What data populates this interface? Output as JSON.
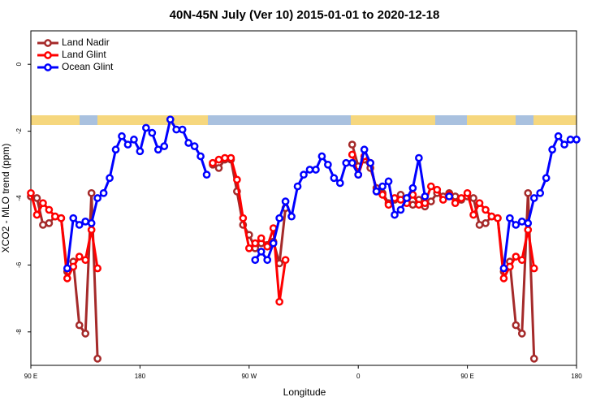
{
  "chart_data": {
    "type": "line",
    "title": "40N-45N July (Ver 10)   2015-01-01 to 2020-12-18",
    "x_label": "Longitude",
    "y_label": "XCO2 - MLO trend (ppm)",
    "x": [
      90,
      95,
      100,
      105,
      110,
      115,
      120,
      125,
      130,
      135,
      140,
      145,
      150,
      155,
      160,
      165,
      170,
      175,
      180,
      185,
      190,
      195,
      200,
      205,
      210,
      215,
      220,
      225,
      230,
      235,
      240,
      245,
      250,
      255,
      260,
      265,
      270,
      275,
      280,
      285,
      290,
      295,
      300,
      305,
      310,
      315,
      320,
      325,
      330,
      335,
      340,
      345,
      350,
      355,
      360,
      365,
      370,
      375,
      380,
      385,
      390,
      395,
      400,
      405,
      410,
      415,
      420,
      425,
      430,
      435,
      440,
      445,
      450,
      455,
      460,
      465,
      470,
      475,
      480,
      485,
      490,
      495,
      500,
      505,
      510,
      515,
      520,
      525,
      530,
      535,
      540
    ],
    "series": [
      {
        "name": "Land Nadir",
        "color": "#a52a2a",
        "values": [
          -3.95,
          -4.0,
          -4.8,
          -4.75,
          -4.55,
          -4.6,
          -6.2,
          -5.9,
          -7.8,
          -8.05,
          -3.85,
          -8.8,
          null,
          null,
          null,
          null,
          null,
          null,
          null,
          null,
          null,
          null,
          null,
          null,
          null,
          null,
          null,
          null,
          null,
          null,
          -3.0,
          -3.1,
          -2.85,
          -2.85,
          -3.8,
          -4.8,
          -5.1,
          -5.5,
          -5.35,
          -5.4,
          -5.3,
          -5.95,
          -4.3,
          null,
          null,
          null,
          null,
          null,
          null,
          null,
          null,
          null,
          null,
          -2.4,
          -3.05,
          -2.85,
          -3.1,
          -3.7,
          -3.85,
          -4.15,
          -4.05,
          -3.9,
          -4.1,
          -4.2,
          -4.05,
          -4.25,
          -4.1,
          -3.85,
          -3.95,
          -3.85,
          -3.95,
          -4.05,
          -3.95,
          -4.0,
          -4.8,
          -4.75,
          -4.55,
          -4.6,
          -6.2,
          -5.9,
          -7.8,
          -8.05,
          -3.85,
          -8.8,
          null,
          null,
          null,
          null,
          null,
          null,
          null
        ]
      },
      {
        "name": "Land Glint",
        "color": "#ff0000",
        "values": [
          -3.85,
          -4.5,
          -4.15,
          -4.35,
          -4.55,
          -4.6,
          -6.4,
          -6.05,
          -5.75,
          -5.85,
          -4.95,
          -6.1,
          null,
          null,
          null,
          null,
          null,
          null,
          null,
          null,
          null,
          null,
          null,
          null,
          null,
          null,
          null,
          null,
          null,
          null,
          -2.95,
          -2.85,
          -2.8,
          -2.8,
          -3.45,
          -4.6,
          -5.5,
          -5.35,
          -5.2,
          -5.45,
          -4.9,
          -7.1,
          -5.85,
          null,
          null,
          null,
          null,
          null,
          null,
          null,
          null,
          null,
          null,
          -2.7,
          -3.3,
          -2.75,
          -2.95,
          -3.8,
          -3.9,
          -4.2,
          -4.0,
          -4.05,
          -4.15,
          -3.9,
          -4.2,
          -4.15,
          -3.65,
          -3.75,
          -4.05,
          -3.9,
          -4.15,
          -4.0,
          -3.85,
          -4.5,
          -4.15,
          -4.35,
          -4.55,
          -4.6,
          -6.4,
          -6.05,
          -5.75,
          -5.85,
          -4.95,
          -6.1,
          null,
          null,
          null,
          null,
          null,
          null,
          null
        ]
      },
      {
        "name": "Ocean Glint",
        "color": "#0000ff",
        "values": [
          null,
          null,
          null,
          null,
          null,
          null,
          -6.1,
          -4.6,
          -4.8,
          -4.7,
          -4.75,
          -4.0,
          -3.85,
          -3.4,
          -2.55,
          -2.15,
          -2.4,
          -2.25,
          -2.6,
          -1.9,
          -2.05,
          -2.55,
          -2.45,
          -1.65,
          -1.95,
          -1.95,
          -2.35,
          -2.45,
          -2.75,
          -3.3,
          null,
          null,
          null,
          null,
          null,
          null,
          null,
          -5.85,
          -5.6,
          -5.85,
          -5.35,
          -4.6,
          -4.1,
          -4.55,
          -3.65,
          -3.3,
          -3.15,
          -3.15,
          -2.75,
          -3.0,
          -3.4,
          -3.55,
          -2.95,
          -2.95,
          -3.3,
          -2.55,
          -2.95,
          -3.8,
          -3.65,
          -3.5,
          -4.5,
          -4.35,
          -4.0,
          -3.7,
          -2.8,
          -3.95,
          null,
          null,
          null,
          -3.95,
          null,
          null,
          null,
          null,
          null,
          null,
          null,
          null,
          -6.1,
          -4.6,
          -4.8,
          -4.7,
          -4.75,
          -4.0,
          -3.85,
          -3.4,
          -2.55,
          -2.15,
          -2.4,
          -2.25,
          -2.25
        ]
      }
    ],
    "xlim": [
      90,
      540
    ],
    "xticks": [
      {
        "value": 90,
        "label": "90 E"
      },
      180,
      {
        "value": 270,
        "label": "90 W"
      },
      {
        "value": 360,
        "label": "0"
      },
      {
        "value": 450,
        "label": "90 E"
      },
      {
        "value": 540,
        "label": "180"
      }
    ],
    "ylim": [
      -9,
      1
    ],
    "yticks": [
      -8,
      -6,
      -4,
      -2,
      0
    ],
    "legend": "top-left"
  }
}
